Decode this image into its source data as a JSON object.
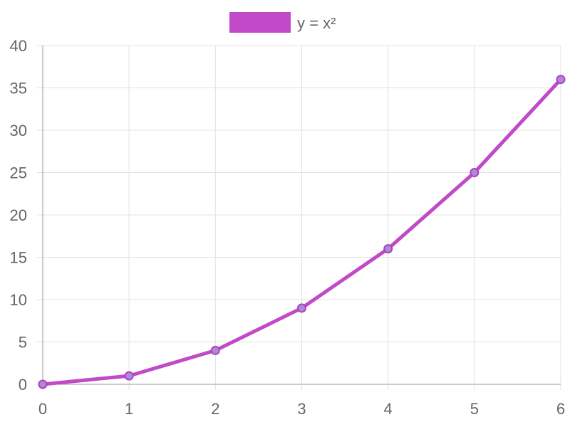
{
  "chart_data": {
    "type": "line",
    "x": [
      0,
      1,
      2,
      3,
      4,
      5,
      6
    ],
    "series": [
      {
        "name": "y = x²",
        "values": [
          0,
          1,
          4,
          9,
          16,
          25,
          36
        ]
      }
    ],
    "xlim": [
      0,
      6
    ],
    "ylim": [
      0,
      40
    ],
    "x_ticks": [
      "0",
      "1",
      "2",
      "3",
      "4",
      "5",
      "6"
    ],
    "y_ticks": [
      "0",
      "5",
      "10",
      "15",
      "20",
      "25",
      "30",
      "35",
      "40"
    ],
    "grid": true,
    "legend_position": "top-center",
    "colors": {
      "series_line": "#c04ac8",
      "series_point_fill": "#a98bd8",
      "series_point_stroke": "#b040c0",
      "grid": "#e1e1e1",
      "axis": "#9a9a9a",
      "text": "#666666"
    }
  }
}
